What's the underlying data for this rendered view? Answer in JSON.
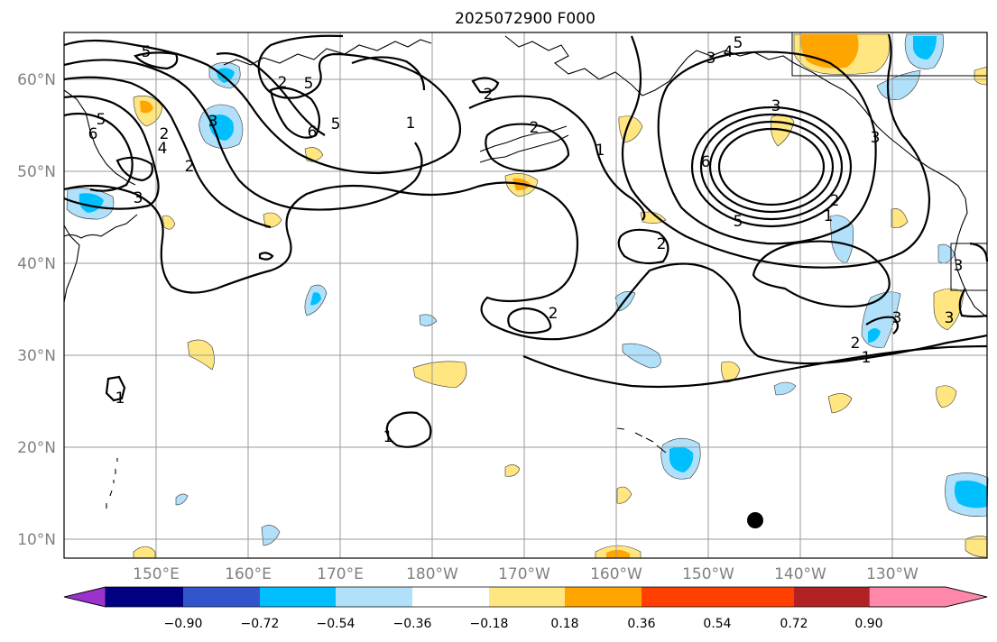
{
  "title": "2025072900 F000",
  "lat_labels": [
    "60°N",
    "50°N",
    "40°N",
    "30°N",
    "20°N",
    "10°N"
  ],
  "lon_labels": [
    "150°E",
    "160°E",
    "170°E",
    "180°W",
    "170°W",
    "160°W",
    "150°W",
    "140°W",
    "130°W"
  ],
  "colorbar": {
    "ticks": [
      "−0.90",
      "−0.72",
      "−0.54",
      "−0.36",
      "−0.18",
      "0.18",
      "0.36",
      "0.54",
      "0.72",
      "0.90"
    ],
    "colors": [
      "#9933cc",
      "#000080",
      "#3355cc",
      "#00bfff",
      "#b0e0fa",
      "#ffffff",
      "#ffe680",
      "#ffa500",
      "#ff4000",
      "#b22222",
      "#ff88aa"
    ]
  },
  "contour_labels": [
    "5",
    "5",
    "2",
    "3",
    "5",
    "6",
    "4",
    "3",
    "5",
    "2",
    "1",
    "2",
    "2",
    "1",
    "6",
    "3",
    "3",
    "4",
    "5",
    "3",
    "5",
    "6",
    "2",
    "1",
    "2",
    "2",
    "2",
    "1",
    "1",
    "3",
    "3",
    "3",
    "2",
    "1"
  ],
  "marker": "station-dot"
}
